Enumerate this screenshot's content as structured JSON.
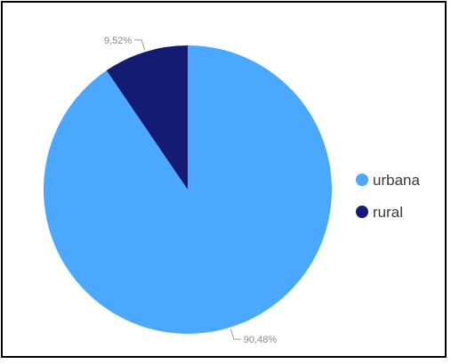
{
  "chart_data": {
    "type": "pie",
    "title": "",
    "categories": [
      "urbana",
      "rural"
    ],
    "values": [
      90.48,
      9.52
    ],
    "value_labels": [
      "90,48%",
      "9,52%"
    ],
    "colors": [
      "#4aa8ff",
      "#141b72"
    ],
    "legend": {
      "position": "right",
      "entries": [
        "urbana",
        "rural"
      ]
    }
  }
}
